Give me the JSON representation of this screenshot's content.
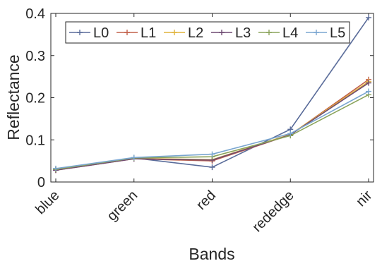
{
  "chart_data": {
    "type": "line",
    "title": "",
    "xlabel": "Bands",
    "ylabel": "Reflectance",
    "categories": [
      "blue",
      "green",
      "red",
      "rededge",
      "nir"
    ],
    "ylim": [
      0,
      0.4
    ],
    "yticks": [
      0,
      0.1,
      0.2,
      0.3,
      0.4
    ],
    "ytick_labels": [
      "0",
      "0.1",
      "0.2",
      "0.3",
      "0.4"
    ],
    "grid": false,
    "legend": {
      "placement": "top-center",
      "orientation": "horizontal"
    },
    "series": [
      {
        "name": "L0",
        "color": "#5a6c9a",
        "values": [
          0.03,
          0.057,
          0.035,
          0.125,
          0.39
        ]
      },
      {
        "name": "L1",
        "color": "#c2614a",
        "values": [
          0.028,
          0.055,
          0.05,
          0.112,
          0.243
        ]
      },
      {
        "name": "L2",
        "color": "#e0b43c",
        "values": [
          0.029,
          0.056,
          0.053,
          0.113,
          0.238
        ]
      },
      {
        "name": "L3",
        "color": "#6e4a72",
        "values": [
          0.028,
          0.055,
          0.052,
          0.112,
          0.235
        ]
      },
      {
        "name": "L4",
        "color": "#8aa35a",
        "values": [
          0.03,
          0.057,
          0.06,
          0.11,
          0.207
        ]
      },
      {
        "name": "L5",
        "color": "#7aa6d0",
        "values": [
          0.032,
          0.058,
          0.066,
          0.115,
          0.215
        ]
      }
    ]
  }
}
